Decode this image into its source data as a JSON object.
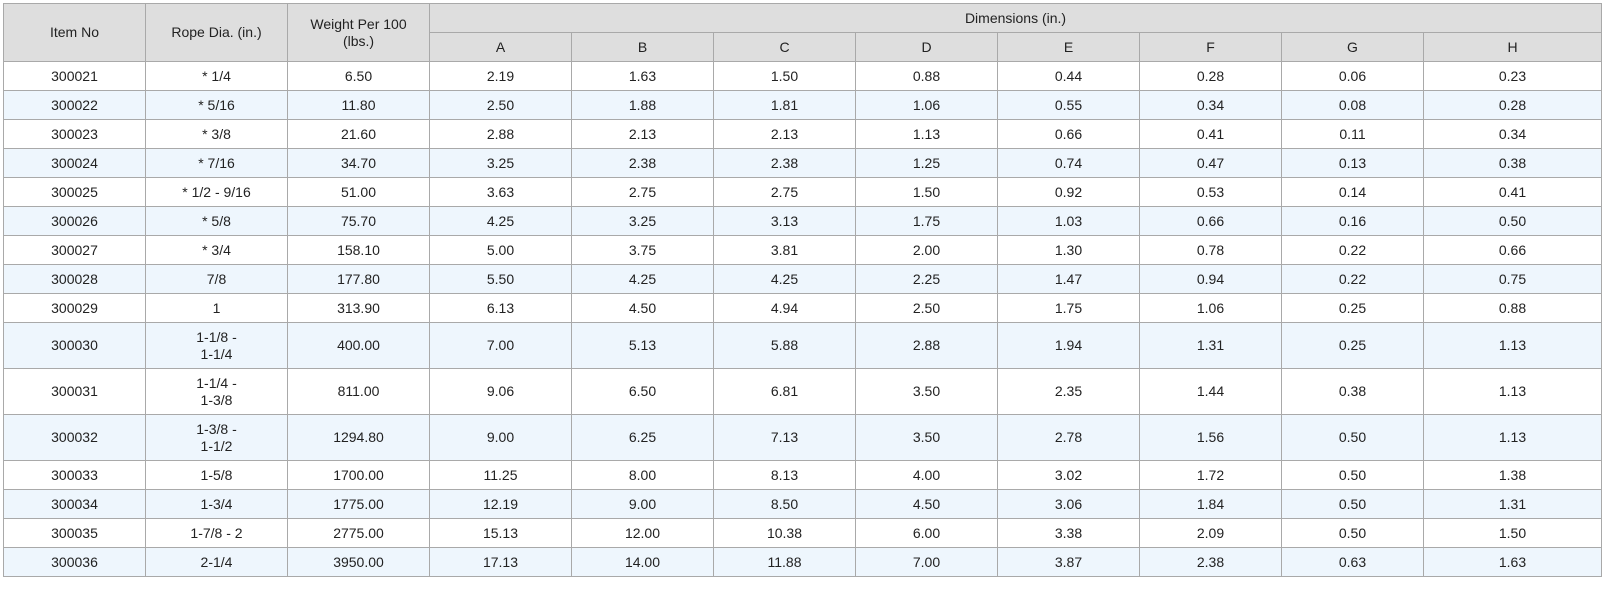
{
  "headers": {
    "item_no": "Item No",
    "rope_dia": "Rope Dia. (in.)",
    "weight_line1": "Weight Per 100",
    "weight_line2": "(lbs.)",
    "dimensions": "Dimensions (in.)",
    "dim_columns": [
      "A",
      "B",
      "C",
      "D",
      "E",
      "F",
      "G",
      "H"
    ]
  },
  "rows": [
    {
      "item": "300021",
      "rope": [
        "* 1/4"
      ],
      "weight": "6.50",
      "dims": [
        "2.19",
        "1.63",
        "1.50",
        "0.88",
        "0.44",
        "0.28",
        "0.06",
        "0.23"
      ]
    },
    {
      "item": "300022",
      "rope": [
        "* 5/16"
      ],
      "weight": "11.80",
      "dims": [
        "2.50",
        "1.88",
        "1.81",
        "1.06",
        "0.55",
        "0.34",
        "0.08",
        "0.28"
      ]
    },
    {
      "item": "300023",
      "rope": [
        "* 3/8"
      ],
      "weight": "21.60",
      "dims": [
        "2.88",
        "2.13",
        "2.13",
        "1.13",
        "0.66",
        "0.41",
        "0.11",
        "0.34"
      ]
    },
    {
      "item": "300024",
      "rope": [
        "* 7/16"
      ],
      "weight": "34.70",
      "dims": [
        "3.25",
        "2.38",
        "2.38",
        "1.25",
        "0.74",
        "0.47",
        "0.13",
        "0.38"
      ]
    },
    {
      "item": "300025",
      "rope": [
        "* 1/2 - 9/16"
      ],
      "weight": "51.00",
      "dims": [
        "3.63",
        "2.75",
        "2.75",
        "1.50",
        "0.92",
        "0.53",
        "0.14",
        "0.41"
      ]
    },
    {
      "item": "300026",
      "rope": [
        "* 5/8"
      ],
      "weight": "75.70",
      "dims": [
        "4.25",
        "3.25",
        "3.13",
        "1.75",
        "1.03",
        "0.66",
        "0.16",
        "0.50"
      ]
    },
    {
      "item": "300027",
      "rope": [
        "* 3/4"
      ],
      "weight": "158.10",
      "dims": [
        "5.00",
        "3.75",
        "3.81",
        "2.00",
        "1.30",
        "0.78",
        "0.22",
        "0.66"
      ]
    },
    {
      "item": "300028",
      "rope": [
        "7/8"
      ],
      "weight": "177.80",
      "dims": [
        "5.50",
        "4.25",
        "4.25",
        "2.25",
        "1.47",
        "0.94",
        "0.22",
        "0.75"
      ]
    },
    {
      "item": "300029",
      "rope": [
        "1"
      ],
      "weight": "313.90",
      "dims": [
        "6.13",
        "4.50",
        "4.94",
        "2.50",
        "1.75",
        "1.06",
        "0.25",
        "0.88"
      ]
    },
    {
      "item": "300030",
      "rope": [
        "1-1/8 -",
        "1-1/4"
      ],
      "weight": "400.00",
      "dims": [
        "7.00",
        "5.13",
        "5.88",
        "2.88",
        "1.94",
        "1.31",
        "0.25",
        "1.13"
      ]
    },
    {
      "item": "300031",
      "rope": [
        "1-1/4 -",
        "1-3/8"
      ],
      "weight": "811.00",
      "dims": [
        "9.06",
        "6.50",
        "6.81",
        "3.50",
        "2.35",
        "1.44",
        "0.38",
        "1.13"
      ]
    },
    {
      "item": "300032",
      "rope": [
        "1-3/8 -",
        "1-1/2"
      ],
      "weight": "1294.80",
      "dims": [
        "9.00",
        "6.25",
        "7.13",
        "3.50",
        "2.78",
        "1.56",
        "0.50",
        "1.13"
      ]
    },
    {
      "item": "300033",
      "rope": [
        "1-5/8"
      ],
      "weight": "1700.00",
      "dims": [
        "11.25",
        "8.00",
        "8.13",
        "4.00",
        "3.02",
        "1.72",
        "0.50",
        "1.38"
      ]
    },
    {
      "item": "300034",
      "rope": [
        "1-3/4"
      ],
      "weight": "1775.00",
      "dims": [
        "12.19",
        "9.00",
        "8.50",
        "4.50",
        "3.06",
        "1.84",
        "0.50",
        "1.31"
      ]
    },
    {
      "item": "300035",
      "rope": [
        "1-7/8 - 2"
      ],
      "weight": "2775.00",
      "dims": [
        "15.13",
        "12.00",
        "10.38",
        "6.00",
        "3.38",
        "2.09",
        "0.50",
        "1.50"
      ]
    },
    {
      "item": "300036",
      "rope": [
        "2-1/4"
      ],
      "weight": "3950.00",
      "dims": [
        "17.13",
        "14.00",
        "11.88",
        "7.00",
        "3.87",
        "2.38",
        "0.63",
        "1.63"
      ]
    }
  ]
}
